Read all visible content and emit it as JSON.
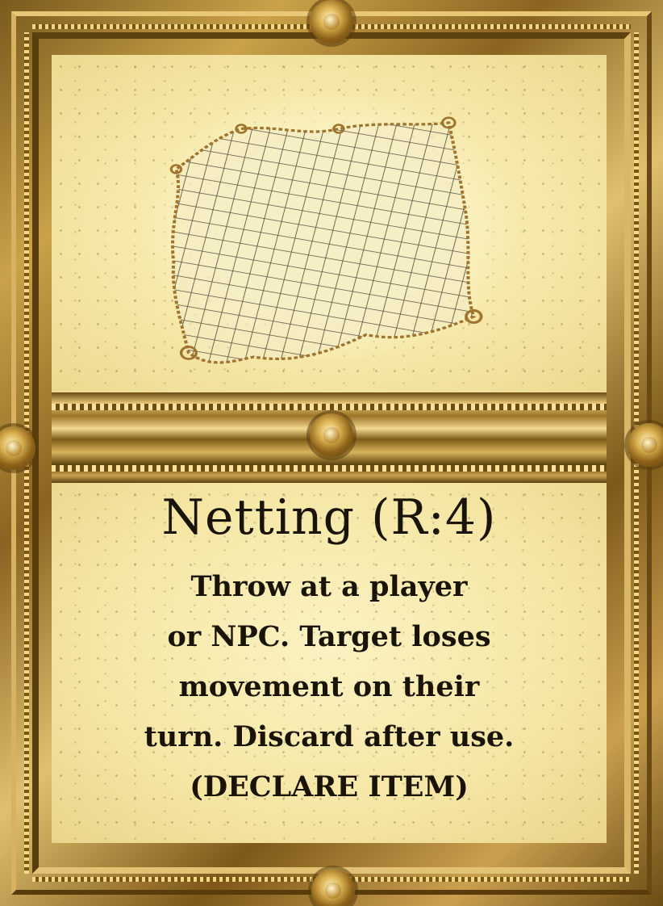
{
  "card": {
    "title": "Netting (R:4)",
    "description_lines": [
      "Throw at a player",
      "or NPC. Target loses",
      "movement on their",
      "turn. Discard after use.",
      "(DECLARE ITEM)"
    ],
    "artwork": "net-illustration",
    "colors": {
      "text": "#1a1408",
      "panel": "#f7eaad",
      "frame_gold": "#c9a24a"
    }
  }
}
